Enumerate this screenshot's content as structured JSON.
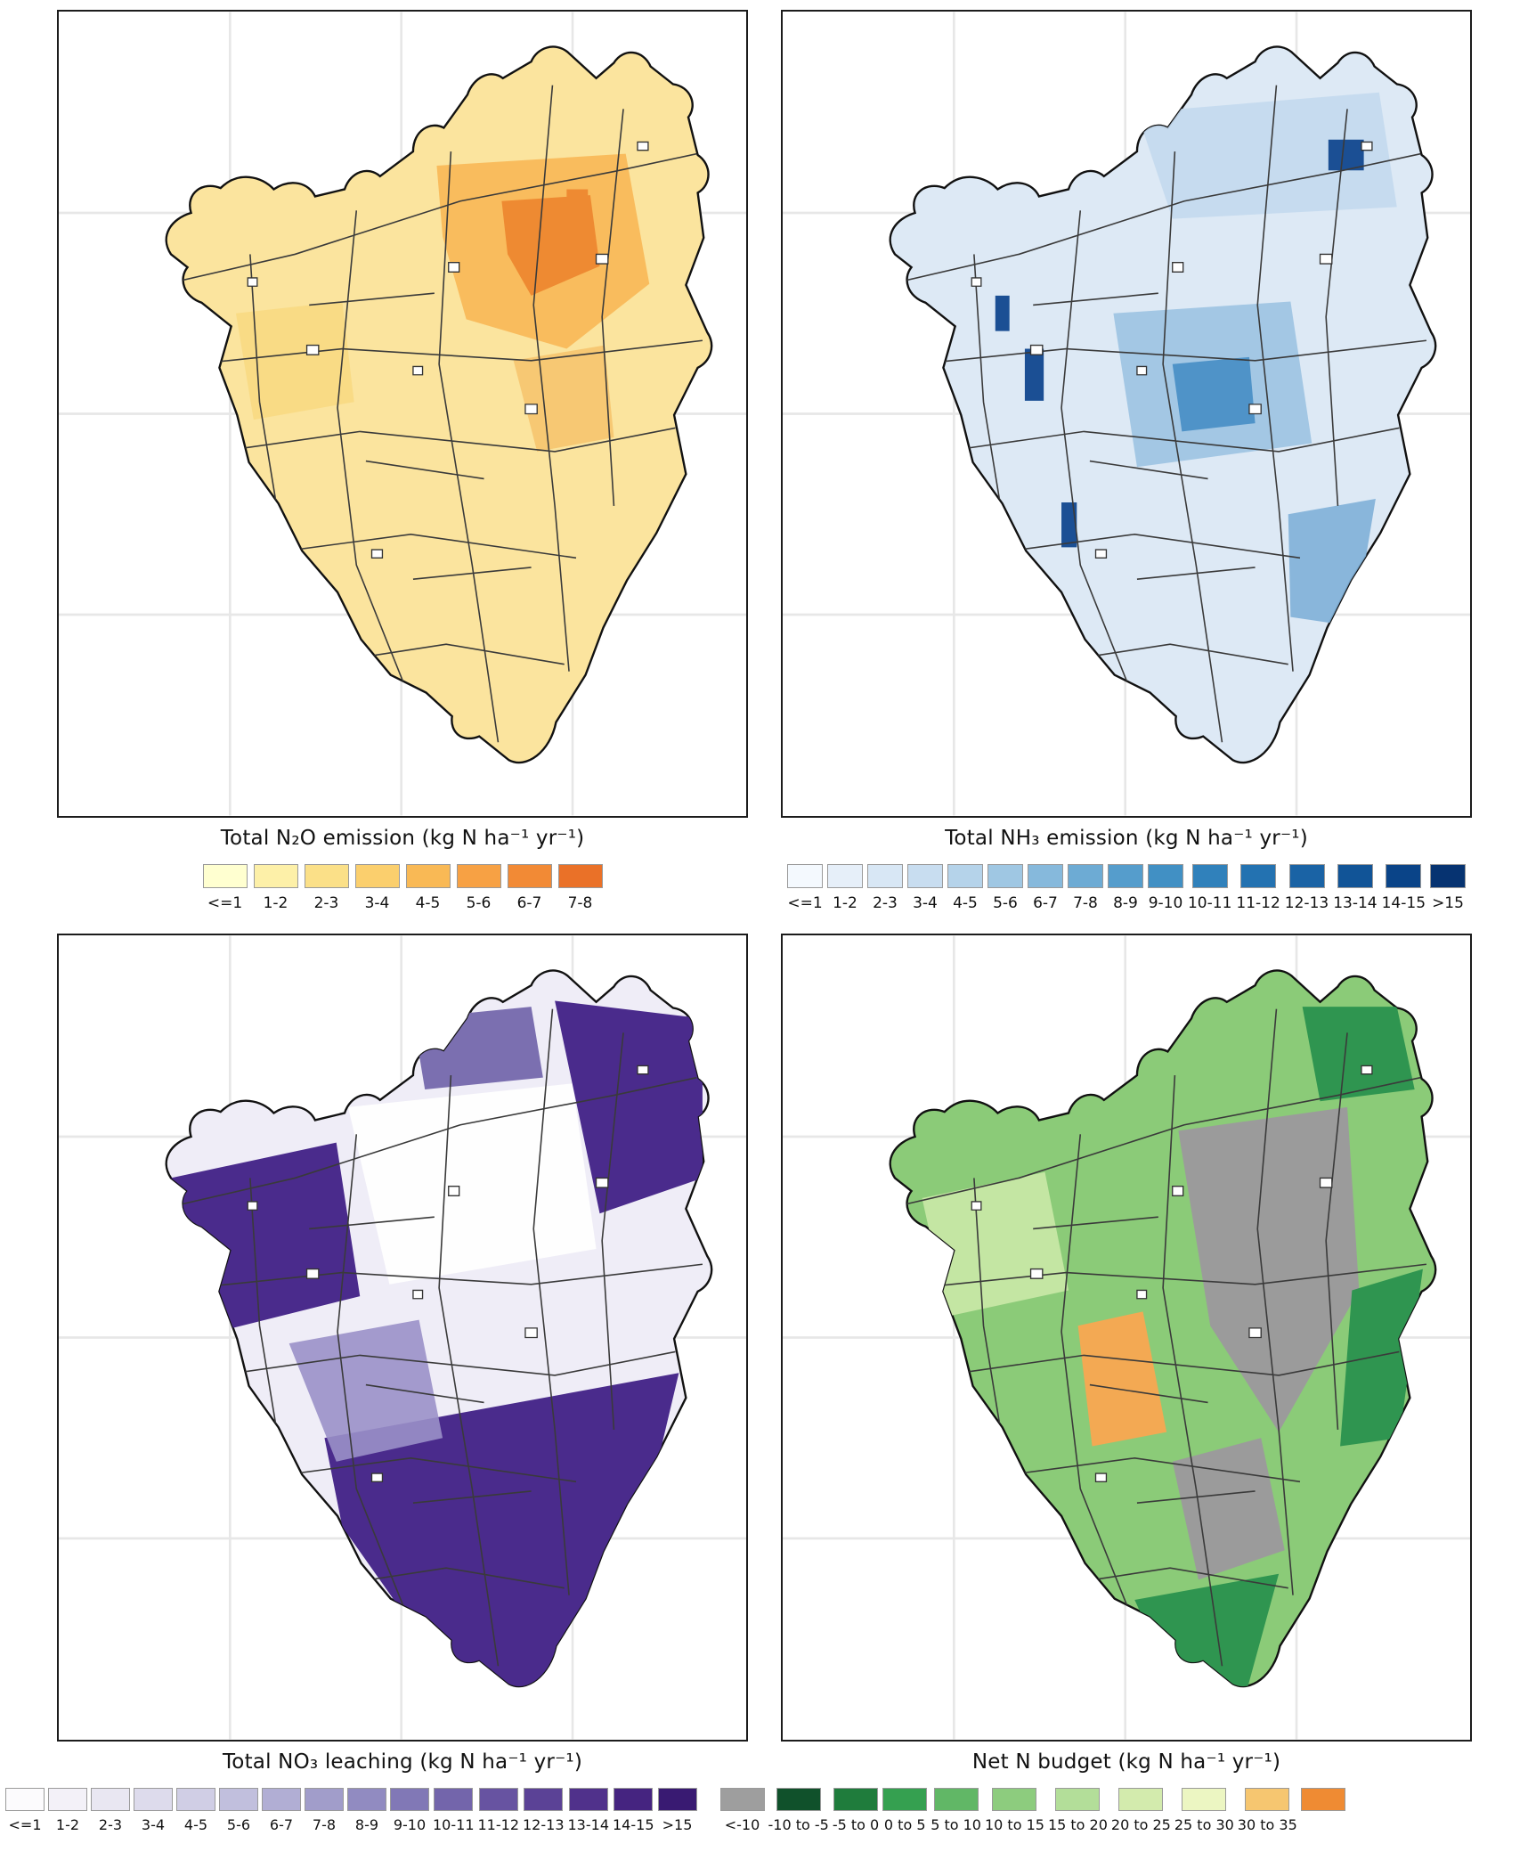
{
  "figure": {
    "panels": [
      {
        "id": "n2o",
        "title": "Total N₂O emission (kg N ha⁻¹ yr⁻¹)",
        "legend": {
          "items": [
            {
              "label": "<=1",
              "color": "#ffffd0"
            },
            {
              "label": "1-2",
              "color": "#fdf0a8"
            },
            {
              "label": "2-3",
              "color": "#fbe088"
            },
            {
              "label": "3-4",
              "color": "#fbcf6d"
            },
            {
              "label": "4-5",
              "color": "#f9b955"
            },
            {
              "label": "5-6",
              "color": "#f7a144"
            },
            {
              "label": "6-7",
              "color": "#f28a35"
            },
            {
              "label": "7-8",
              "color": "#ea7128"
            }
          ]
        },
        "map": {
          "base": "#fbe49e",
          "patches": [
            "#f9b24c",
            "#ee8a32",
            "#f6c36b",
            "#f8d982"
          ]
        }
      },
      {
        "id": "nh3",
        "title": "Total NH₃ emission (kg N ha⁻¹ yr⁻¹)",
        "legend": {
          "items": [
            {
              "label": "<=1",
              "color": "#f4f9fe"
            },
            {
              "label": "1-2",
              "color": "#e6eff9"
            },
            {
              "label": "2-3",
              "color": "#d8e7f5"
            },
            {
              "label": "3-4",
              "color": "#c8ddf0"
            },
            {
              "label": "4-5",
              "color": "#b5d3ea"
            },
            {
              "label": "5-6",
              "color": "#9fc7e3"
            },
            {
              "label": "6-7",
              "color": "#86b9dc"
            },
            {
              "label": "7-8",
              "color": "#6dabd4"
            },
            {
              "label": "8-9",
              "color": "#559dcc"
            },
            {
              "label": "9-10",
              "color": "#4190c4"
            },
            {
              "label": "10-11",
              "color": "#3081bb"
            },
            {
              "label": "11-12",
              "color": "#2372b1"
            },
            {
              "label": "12-13",
              "color": "#1a63a5"
            },
            {
              "label": "13-14",
              "color": "#115497"
            },
            {
              "label": "14-15",
              "color": "#0a4488"
            },
            {
              "label": ">15",
              "color": "#063371"
            }
          ]
        },
        "map": {
          "base": "#dde9f5",
          "patches": [
            "#9cc3e2",
            "#4f93c8",
            "#1b4f94",
            "#c3d9ee",
            "#7fb0d8"
          ]
        }
      },
      {
        "id": "no3",
        "title": "Total NO₃ leaching (kg N ha⁻¹ yr⁻¹)",
        "legend": {
          "items": [
            {
              "label": "<=1",
              "color": "#fcfbfd"
            },
            {
              "label": "1-2",
              "color": "#f3f1f8"
            },
            {
              "label": "2-3",
              "color": "#e9e7f2"
            },
            {
              "label": "3-4",
              "color": "#dddbec"
            },
            {
              "label": "4-5",
              "color": "#d0cee5"
            },
            {
              "label": "5-6",
              "color": "#c1bfdd"
            },
            {
              "label": "6-7",
              "color": "#b1aed4"
            },
            {
              "label": "7-8",
              "color": "#a19dca"
            },
            {
              "label": "8-9",
              "color": "#918bc1"
            },
            {
              "label": "9-10",
              "color": "#8178b6"
            },
            {
              "label": "10-11",
              "color": "#7365ab"
            },
            {
              "label": "11-12",
              "color": "#6753a1"
            },
            {
              "label": "12-13",
              "color": "#5b4296"
            },
            {
              "label": "13-14",
              "color": "#50318b"
            },
            {
              "label": "14-15",
              "color": "#452480"
            },
            {
              "label": ">15",
              "color": "#391a72"
            }
          ]
        },
        "map": {
          "base": "#efedf7",
          "patches": [
            "#fefefe",
            "#4a2b8c",
            "#4a2b8c",
            "#4a2b8c",
            "#9a90c8",
            "#7b6fb0"
          ]
        }
      },
      {
        "id": "net",
        "title": "Net N budget (kg N ha⁻¹ yr⁻¹)",
        "legend": {
          "items": [
            {
              "label": "<-10",
              "color": "#9e9e9e"
            },
            {
              "label": "-10 to -5",
              "color": "#10512b"
            },
            {
              "label": "-5 to 0",
              "color": "#1f7c3c"
            },
            {
              "label": "0 to 5",
              "color": "#35a050"
            },
            {
              "label": "5 to 10",
              "color": "#61b766"
            },
            {
              "label": "10 to 15",
              "color": "#8dcc7e"
            },
            {
              "label": "15 to 20",
              "color": "#b3de99"
            },
            {
              "label": "20 to 25",
              "color": "#d3ebad"
            },
            {
              "label": "25 to 30",
              "color": "#ecf6c2"
            },
            {
              "label": "30 to 35",
              "color": "#f6c670"
            },
            {
              "label": "",
              "color": "#ef8b33"
            }
          ]
        },
        "map": {
          "base": "#8bcb78",
          "patches": [
            "#9b9b9b",
            "#9b9b9b",
            "#f3a953",
            "#2f9550",
            "#2f9550",
            "#c4e6a3",
            "#2f9550"
          ]
        }
      }
    ]
  }
}
